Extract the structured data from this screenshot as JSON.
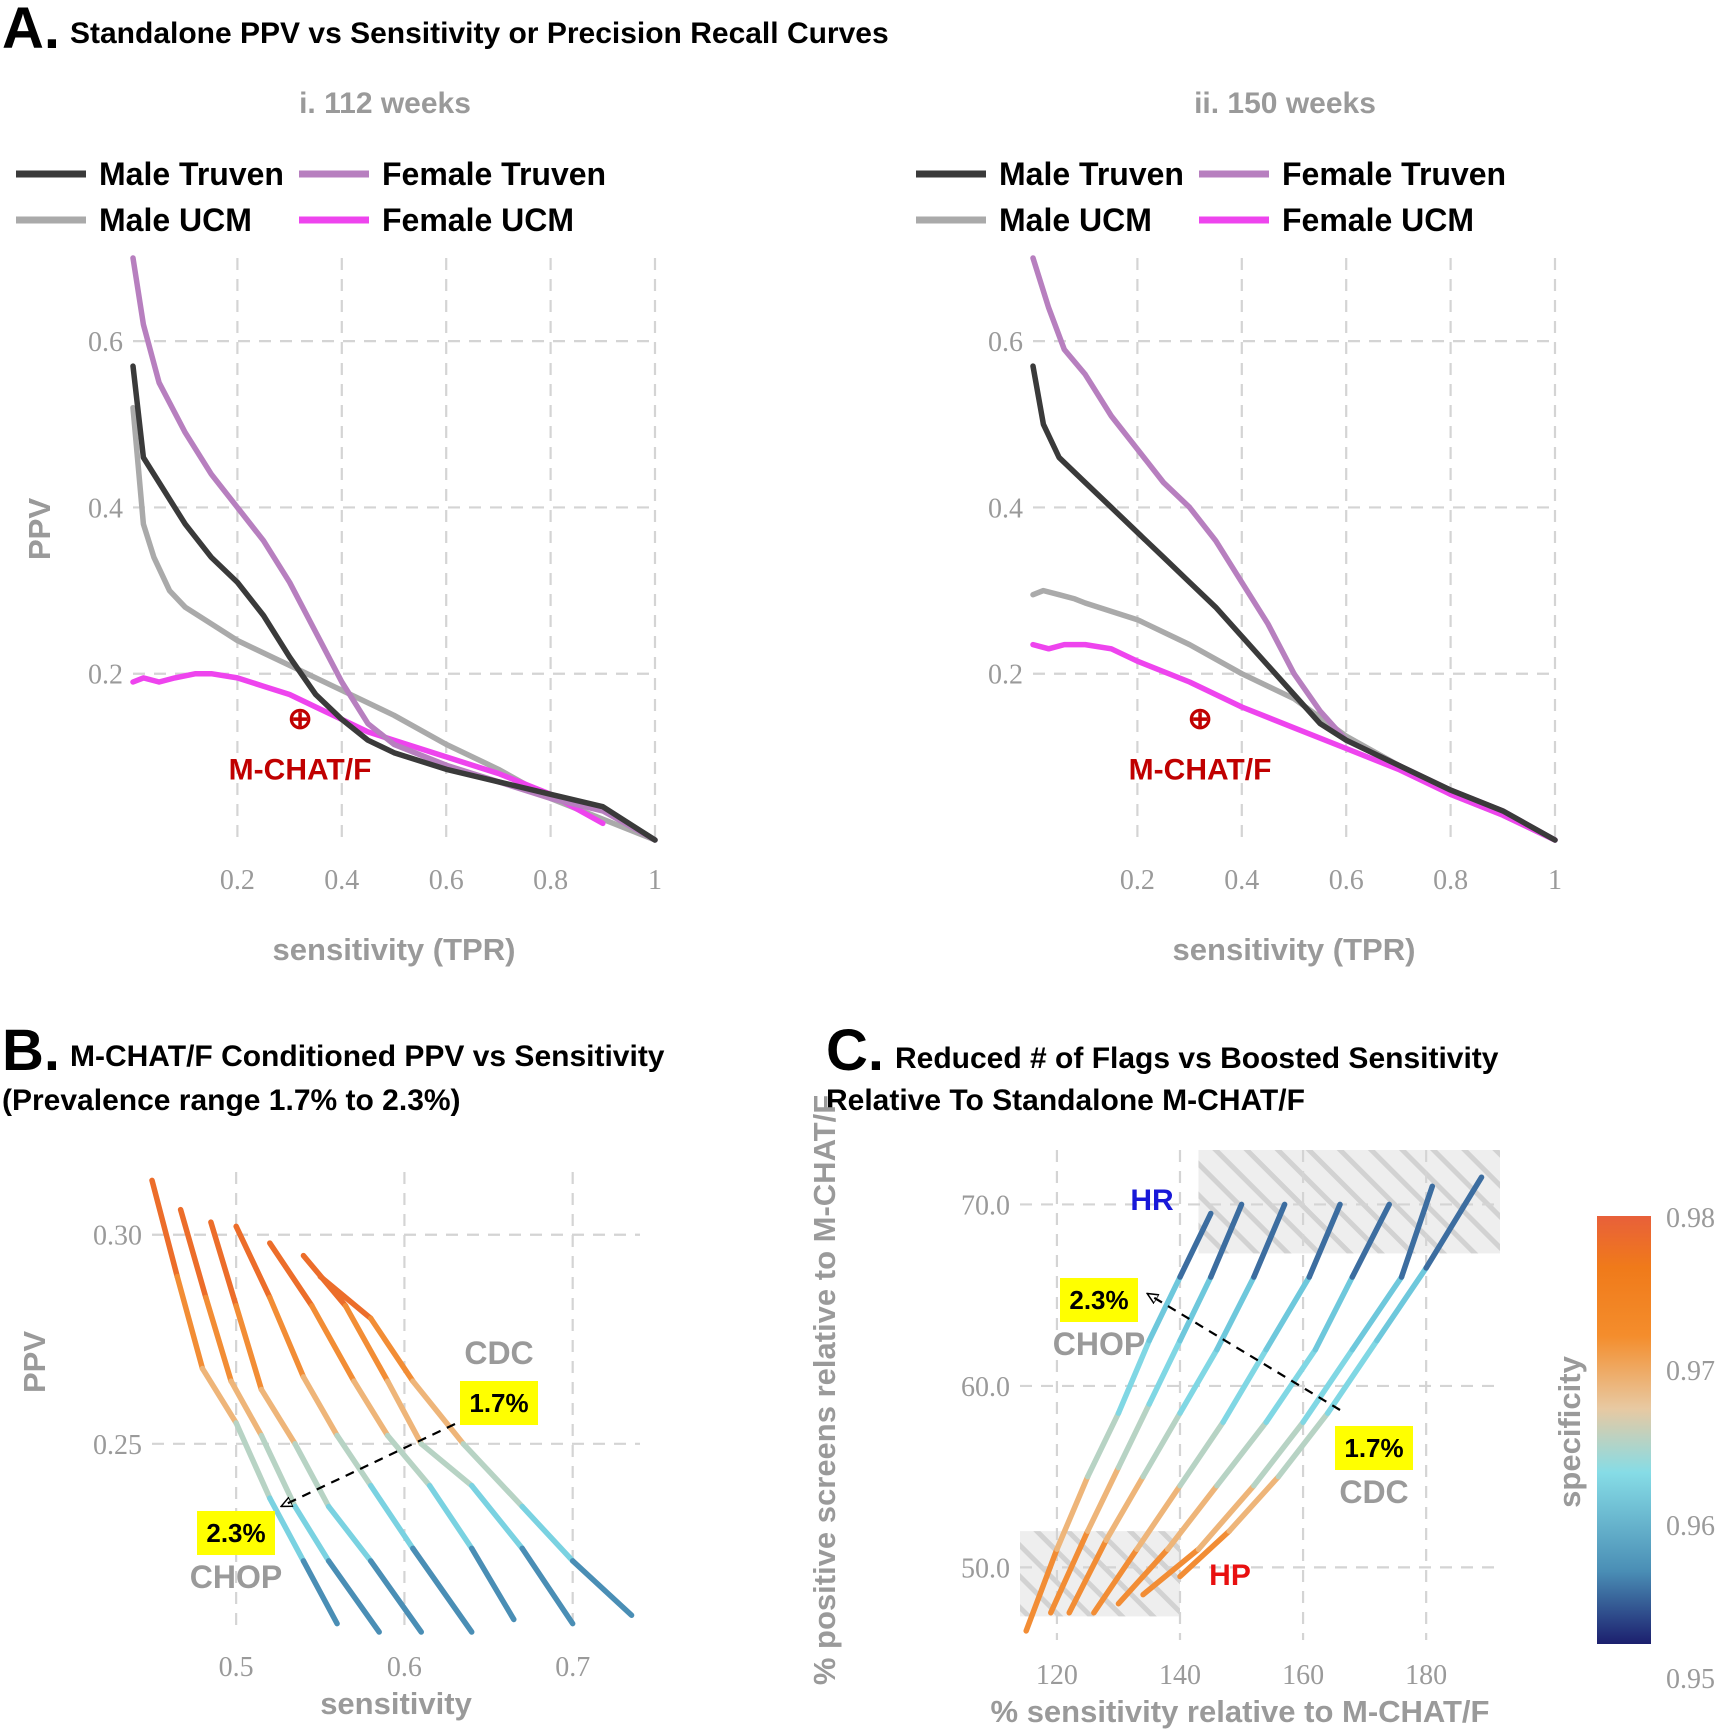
{
  "panel_a": {
    "letter": "A.",
    "title": "Standalone PPV vs Sensitivity or Precision Recall Curves",
    "legend": [
      {
        "label": "Male Truven",
        "color": "#3a3a3a"
      },
      {
        "label": "Female Truven",
        "color": "#b77fbf"
      },
      {
        "label": "Male UCM",
        "color": "#aaaaaa"
      },
      {
        "label": "Female UCM",
        "color": "#ee44ee"
      }
    ],
    "marker_label": "M-CHAT/F",
    "marker_symbol": "⊕"
  },
  "panel_b": {
    "letter": "B.",
    "title_line1": "M-CHAT/F Conditioned PPV vs Sensitivity",
    "title_line2": "(Prevalence range 1.7% to 2.3%)",
    "cdc_label": "CDC",
    "cdc_value": "1.7%",
    "chop_label": "CHOP",
    "chop_value": "2.3%"
  },
  "panel_c": {
    "letter": "C.",
    "title_line1": "Reduced # of Flags vs Boosted Sensitivity",
    "title_line2": "Relative To Standalone M-CHAT/F",
    "hr_label": "HR",
    "hp_label": "HP",
    "cdc_label": "CDC",
    "cdc_value": "1.7%",
    "chop_label": "CHOP",
    "chop_value": "2.3%"
  },
  "colorbar": {
    "title": "specificity",
    "ticks": [
      "0.98",
      "0.97",
      "0.96",
      "0.95"
    ],
    "colors": [
      "#1c1f6e",
      "#4a8eb5",
      "#86dce6",
      "#e8c9a2",
      "#f48d2c",
      "#f07a1a",
      "#e8603a"
    ]
  },
  "chart_data": [
    {
      "type": "line",
      "subtitle": "i.  112 weeks",
      "xlabel": "sensitivity (TPR)",
      "ylabel": "PPV",
      "xlim": [
        0,
        1
      ],
      "ylim": [
        0,
        0.7
      ],
      "xticks": [
        "0.2",
        "0.4",
        "0.6",
        "0.8",
        "1"
      ],
      "yticks": [
        "0.2",
        "0.4",
        "0.6"
      ],
      "grid": true,
      "legend_position": "top",
      "mchat_point": {
        "x": 0.32,
        "y": 0.11
      },
      "series": [
        {
          "name": "Male Truven",
          "color": "#3a3a3a",
          "x": [
            0.0,
            0.02,
            0.05,
            0.1,
            0.15,
            0.2,
            0.25,
            0.3,
            0.35,
            0.4,
            0.45,
            0.5,
            0.6,
            0.7,
            0.8,
            0.9,
            1.0
          ],
          "y": [
            0.57,
            0.46,
            0.43,
            0.38,
            0.34,
            0.31,
            0.27,
            0.22,
            0.175,
            0.145,
            0.12,
            0.105,
            0.085,
            0.07,
            0.055,
            0.04,
            0.0
          ]
        },
        {
          "name": "Female Truven",
          "color": "#b77fbf",
          "x": [
            0.0,
            0.02,
            0.05,
            0.1,
            0.15,
            0.2,
            0.25,
            0.3,
            0.35,
            0.4,
            0.45,
            0.5,
            0.6,
            0.7,
            0.8,
            0.9,
            1.0
          ],
          "y": [
            0.7,
            0.62,
            0.55,
            0.49,
            0.44,
            0.4,
            0.36,
            0.31,
            0.25,
            0.19,
            0.14,
            0.115,
            0.09,
            0.07,
            0.05,
            0.035,
            0.0
          ]
        },
        {
          "name": "Male UCM",
          "color": "#aaaaaa",
          "x": [
            0.0,
            0.01,
            0.02,
            0.04,
            0.07,
            0.1,
            0.15,
            0.2,
            0.3,
            0.4,
            0.5,
            0.6,
            0.7,
            0.8,
            0.9,
            1.0
          ],
          "y": [
            0.52,
            0.45,
            0.38,
            0.34,
            0.3,
            0.28,
            0.26,
            0.24,
            0.21,
            0.18,
            0.15,
            0.115,
            0.085,
            0.05,
            0.025,
            0.0
          ]
        },
        {
          "name": "Female UCM",
          "color": "#ee44ee",
          "x": [
            0.0,
            0.02,
            0.05,
            0.08,
            0.12,
            0.15,
            0.2,
            0.25,
            0.3,
            0.35,
            0.4,
            0.45,
            0.5,
            0.6,
            0.7,
            0.8,
            0.9
          ],
          "y": [
            0.19,
            0.195,
            0.19,
            0.195,
            0.2,
            0.2,
            0.195,
            0.185,
            0.175,
            0.16,
            0.145,
            0.13,
            0.12,
            0.1,
            0.08,
            0.055,
            0.02
          ]
        }
      ]
    },
    {
      "type": "line",
      "subtitle": "ii.  150 weeks",
      "xlabel": "sensitivity (TPR)",
      "ylabel": "PPV",
      "xlim": [
        0,
        1
      ],
      "ylim": [
        0,
        0.7
      ],
      "xticks": [
        "0.2",
        "0.4",
        "0.6",
        "0.8",
        "1"
      ],
      "yticks": [
        "0.2",
        "0.4",
        "0.6"
      ],
      "grid": true,
      "legend_position": "top",
      "mchat_point": {
        "x": 0.32,
        "y": 0.11
      },
      "series": [
        {
          "name": "Male Truven",
          "color": "#3a3a3a",
          "x": [
            0.0,
            0.02,
            0.05,
            0.1,
            0.15,
            0.2,
            0.25,
            0.3,
            0.35,
            0.4,
            0.45,
            0.5,
            0.55,
            0.6,
            0.7,
            0.8,
            0.9,
            1.0
          ],
          "y": [
            0.57,
            0.5,
            0.46,
            0.43,
            0.4,
            0.37,
            0.34,
            0.31,
            0.28,
            0.245,
            0.21,
            0.175,
            0.14,
            0.12,
            0.09,
            0.06,
            0.035,
            0.0
          ]
        },
        {
          "name": "Female Truven",
          "color": "#b77fbf",
          "x": [
            0.0,
            0.03,
            0.06,
            0.1,
            0.15,
            0.2,
            0.25,
            0.3,
            0.35,
            0.4,
            0.45,
            0.5,
            0.55,
            0.6,
            0.7,
            0.8,
            0.9,
            1.0
          ],
          "y": [
            0.7,
            0.64,
            0.59,
            0.56,
            0.51,
            0.47,
            0.43,
            0.4,
            0.36,
            0.31,
            0.26,
            0.2,
            0.155,
            0.12,
            0.09,
            0.06,
            0.035,
            0.0
          ]
        },
        {
          "name": "Male UCM",
          "color": "#aaaaaa",
          "x": [
            0.0,
            0.02,
            0.05,
            0.08,
            0.1,
            0.15,
            0.2,
            0.3,
            0.4,
            0.5,
            0.6,
            0.7,
            0.8,
            0.9,
            1.0
          ],
          "y": [
            0.295,
            0.3,
            0.295,
            0.29,
            0.285,
            0.275,
            0.265,
            0.235,
            0.2,
            0.17,
            0.125,
            0.09,
            0.055,
            0.03,
            0.0
          ]
        },
        {
          "name": "Female UCM",
          "color": "#ee44ee",
          "x": [
            0.0,
            0.03,
            0.06,
            0.1,
            0.15,
            0.2,
            0.3,
            0.4,
            0.5,
            0.6,
            0.7,
            0.8,
            0.9,
            1.0
          ],
          "y": [
            0.235,
            0.23,
            0.235,
            0.235,
            0.23,
            0.215,
            0.19,
            0.16,
            0.135,
            0.11,
            0.085,
            0.055,
            0.03,
            0.0
          ]
        }
      ]
    },
    {
      "type": "line",
      "xlabel": "sensitivity",
      "ylabel": "PPV",
      "xlim": [
        0.45,
        0.74
      ],
      "ylim": [
        0.205,
        0.315
      ],
      "xticks": [
        "0.5",
        "0.6",
        "0.7"
      ],
      "yticks": [
        "0.25",
        "0.30"
      ],
      "grid": true,
      "color_scale": "specificity",
      "series": [
        {
          "x": [
            0.45,
            0.465,
            0.48,
            0.5,
            0.52,
            0.54,
            0.56
          ],
          "y": [
            0.313,
            0.29,
            0.268,
            0.255,
            0.237,
            0.222,
            0.207
          ],
          "specificity": [
            0.98,
            0.975,
            0.97,
            0.966,
            0.962,
            0.958,
            0.952
          ]
        },
        {
          "x": [
            0.467,
            0.482,
            0.497,
            0.515,
            0.535,
            0.555,
            0.585
          ],
          "y": [
            0.306,
            0.285,
            0.265,
            0.252,
            0.235,
            0.222,
            0.205
          ],
          "specificity": [
            0.98,
            0.975,
            0.97,
            0.966,
            0.962,
            0.958,
            0.952
          ]
        },
        {
          "x": [
            0.485,
            0.5,
            0.515,
            0.535,
            0.555,
            0.58,
            0.61
          ],
          "y": [
            0.303,
            0.283,
            0.263,
            0.25,
            0.235,
            0.222,
            0.205
          ],
          "specificity": [
            0.98,
            0.975,
            0.97,
            0.966,
            0.962,
            0.958,
            0.952
          ]
        },
        {
          "x": [
            0.5,
            0.52,
            0.54,
            0.56,
            0.58,
            0.605,
            0.64
          ],
          "y": [
            0.302,
            0.285,
            0.266,
            0.252,
            0.24,
            0.225,
            0.205
          ],
          "specificity": [
            0.98,
            0.975,
            0.97,
            0.966,
            0.962,
            0.958,
            0.952
          ]
        },
        {
          "x": [
            0.52,
            0.545,
            0.57,
            0.59,
            0.615,
            0.64,
            0.665
          ],
          "y": [
            0.298,
            0.283,
            0.265,
            0.252,
            0.24,
            0.225,
            0.208
          ],
          "specificity": [
            0.98,
            0.975,
            0.97,
            0.966,
            0.962,
            0.958,
            0.952
          ]
        },
        {
          "x": [
            0.54,
            0.565,
            0.59,
            0.61,
            0.64,
            0.67,
            0.7
          ],
          "y": [
            0.295,
            0.283,
            0.265,
            0.25,
            0.24,
            0.225,
            0.207
          ],
          "specificity": [
            0.98,
            0.975,
            0.97,
            0.966,
            0.962,
            0.958,
            0.952
          ]
        },
        {
          "x": [
            0.55,
            0.58,
            0.605,
            0.635,
            0.67,
            0.7,
            0.735
          ],
          "y": [
            0.29,
            0.28,
            0.265,
            0.25,
            0.235,
            0.222,
            0.209
          ],
          "specificity": [
            0.98,
            0.975,
            0.97,
            0.966,
            0.962,
            0.958,
            0.952
          ]
        }
      ]
    },
    {
      "type": "line",
      "xlabel": "% sensitivity relative to M-CHAT/F",
      "ylabel": "% positive screens relative to M-CHAT/F",
      "xlim": [
        114,
        192
      ],
      "ylim": [
        46,
        73
      ],
      "xticks": [
        "120",
        "140",
        "160",
        "180"
      ],
      "yticks": [
        "50.0",
        "60.0",
        "70.0"
      ],
      "grid": true,
      "color_scale": "specificity",
      "series": [
        {
          "x": [
            115,
            120,
            125,
            130,
            135,
            140,
            145
          ],
          "y": [
            46.5,
            51,
            55,
            58.5,
            62.5,
            66,
            69.5
          ],
          "specificity": [
            0.975,
            0.97,
            0.966,
            0.962,
            0.96,
            0.956,
            0.951
          ]
        },
        {
          "x": [
            119,
            125,
            130,
            135,
            140,
            145,
            150
          ],
          "y": [
            47.5,
            52,
            55.5,
            59,
            62.5,
            66,
            70
          ],
          "specificity": [
            0.975,
            0.97,
            0.966,
            0.962,
            0.96,
            0.956,
            0.951
          ]
        },
        {
          "x": [
            122,
            128,
            134,
            140,
            146,
            152,
            157
          ],
          "y": [
            47.5,
            51.5,
            55,
            58.5,
            62,
            66,
            70
          ],
          "specificity": [
            0.975,
            0.97,
            0.966,
            0.962,
            0.96,
            0.956,
            0.951
          ]
        },
        {
          "x": [
            126,
            133,
            140,
            147,
            154,
            161,
            166
          ],
          "y": [
            47.5,
            51,
            54.5,
            58,
            62,
            66,
            70
          ],
          "specificity": [
            0.975,
            0.97,
            0.966,
            0.962,
            0.96,
            0.956,
            0.951
          ]
        },
        {
          "x": [
            130,
            138,
            146,
            154,
            162,
            168,
            174
          ],
          "y": [
            48,
            51,
            54.5,
            58,
            62,
            66,
            70
          ],
          "specificity": [
            0.975,
            0.97,
            0.966,
            0.962,
            0.96,
            0.956,
            0.951
          ]
        },
        {
          "x": [
            134,
            143,
            152,
            160,
            168,
            176,
            181
          ],
          "y": [
            48.5,
            51,
            54.5,
            58,
            62,
            66,
            71
          ],
          "specificity": [
            0.975,
            0.97,
            0.966,
            0.962,
            0.96,
            0.956,
            0.951
          ]
        },
        {
          "x": [
            140,
            148,
            156,
            164,
            172,
            180,
            189
          ],
          "y": [
            49.5,
            52,
            55,
            58.5,
            62.5,
            66.5,
            71.5
          ],
          "specificity": [
            0.975,
            0.97,
            0.966,
            0.962,
            0.96,
            0.956,
            0.951
          ]
        }
      ]
    }
  ]
}
